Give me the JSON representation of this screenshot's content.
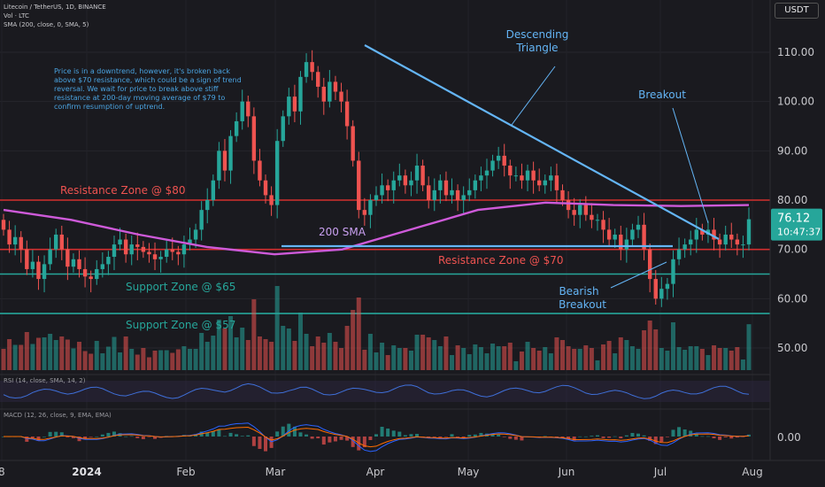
{
  "header": {
    "symbol_line": "Litecoin / TetherUS, 1D, BINANCE",
    "vol_line": "Vol · LTC",
    "sma_line": "SMA (200, close, 0, SMA, 5)",
    "rsi_line": "RSI (14, close, SMA, 14, 2)",
    "macd_line": "MACD (12, 26, close, 9, EMA, EMA)"
  },
  "note": "Price is in a downtrend, however, it's broken back above $70 resistance, which could be a sign of trend reversal. We wait for price to break above stiff resistance at 200-day moving average of $79 to confirm resumption of uptrend.",
  "currency_button": "USDT",
  "price_tag": {
    "value": "76.12",
    "countdown": "10:47:37"
  },
  "annotations": {
    "descending_triangle": [
      "Descending",
      "Triangle"
    ],
    "breakout": "Breakout",
    "bearish_breakout": [
      "Bearish",
      "Breakout"
    ],
    "sma_label": "200 SMA",
    "resistance_80": "Resistance Zone @ $80",
    "resistance_70": "Resistance Zone @ $70",
    "support_65": "Support Zone @ $65",
    "support_57": "Support Zone @ $57"
  },
  "colors": {
    "background": "#1a1a1f",
    "up": "#26a69a",
    "down": "#ef5350",
    "resistance": "#d32f2f",
    "support": "#26a69a",
    "sma": "#ce5ad9",
    "trendline": "#64b5f6",
    "annotation_text": "#64b5f6",
    "rsi": "#3f6fd9",
    "macd": "#2962ff",
    "signal": "#ff6d00"
  },
  "chart_data": {
    "type": "candlestick",
    "price_axis": {
      "ticks": [
        110,
        100,
        90,
        80,
        70,
        60,
        50
      ],
      "tick_labels": [
        "110.00",
        "100.00",
        "90.00",
        "80.00",
        "70.00",
        "60.00",
        "50.00"
      ]
    },
    "macd_axis": {
      "ticks": [
        "0.00"
      ]
    },
    "time_axis": {
      "labels": [
        "2024",
        "Feb",
        "Mar",
        "Apr",
        "May",
        "Jun",
        "Jul",
        "Aug"
      ]
    },
    "levels": [
      {
        "name": "Resistance Zone @ $80",
        "price": 80
      },
      {
        "name": "Resistance Zone @ $70",
        "price": 70
      },
      {
        "name": "Support Zone @ $65",
        "price": 65
      },
      {
        "name": "Support Zone @ $57",
        "price": 57
      }
    ],
    "last_price": 76.12,
    "sma_200": [
      [
        0,
        78
      ],
      [
        30,
        76
      ],
      [
        60,
        73
      ],
      [
        90,
        70.5
      ],
      [
        120,
        69
      ],
      [
        150,
        70
      ],
      [
        180,
        74
      ],
      [
        210,
        78
      ],
      [
        240,
        79.5
      ],
      [
        270,
        79
      ],
      [
        300,
        78.8
      ],
      [
        330,
        79
      ]
    ],
    "candles": {
      "closes": [
        74,
        71,
        72.5,
        70,
        66,
        67.5,
        64,
        67,
        70,
        73,
        70,
        66.5,
        68,
        66,
        64.5,
        64,
        66,
        67,
        68.5,
        71,
        72,
        69,
        71,
        70.5,
        69.5,
        69,
        68,
        68.5,
        70,
        69.5,
        69,
        71,
        72,
        74,
        78,
        80,
        84,
        90,
        86,
        93,
        96,
        100,
        97,
        88,
        84,
        81,
        79,
        92,
        97,
        101,
        98,
        105,
        108,
        106,
        103,
        100,
        104,
        102,
        100,
        95,
        88,
        78,
        77,
        80,
        81,
        83,
        82,
        84,
        85,
        83,
        84,
        87,
        83,
        80,
        82,
        84,
        81,
        82,
        80,
        81,
        82,
        84,
        85,
        86,
        88,
        89,
        87,
        85,
        85,
        84,
        86,
        84,
        83,
        84,
        85,
        82,
        80,
        78,
        77,
        79,
        77,
        76,
        76,
        74,
        72,
        73,
        70,
        72,
        74,
        75,
        70,
        64,
        60,
        62,
        63,
        68,
        70,
        71,
        72,
        74,
        73,
        74,
        72,
        71,
        73,
        72,
        71,
        71,
        76.12
      ]
    }
  }
}
